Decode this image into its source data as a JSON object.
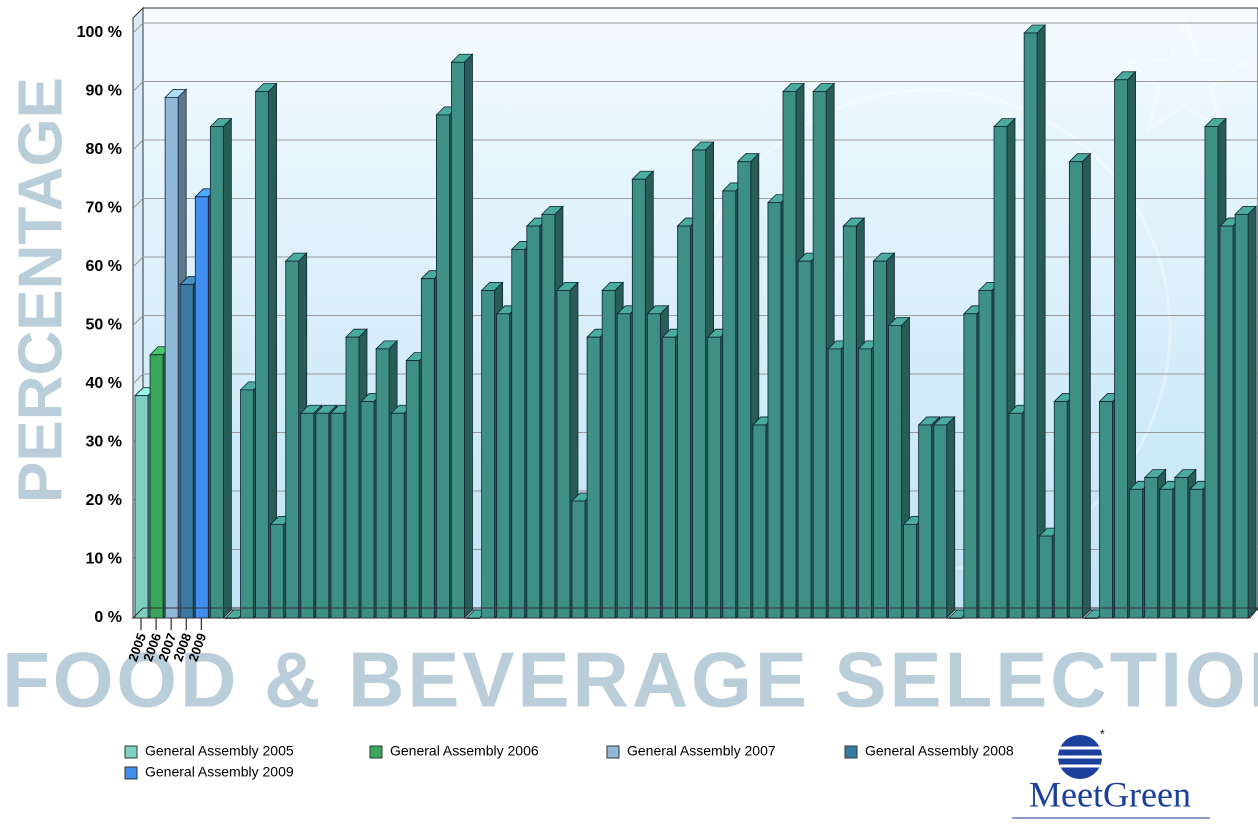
{
  "chart_data": {
    "type": "bar3d",
    "y_axis_title": "PERCENTAGE",
    "x_axis_title": "FOOD & BEVERAGE SELECTION",
    "categories": [
      "2005",
      "2006",
      "2007",
      "2008",
      "2009",
      null,
      null,
      null,
      null,
      null,
      null,
      null,
      null,
      null,
      null,
      null,
      null,
      null,
      null,
      null,
      null,
      null,
      null,
      null,
      null,
      null,
      null,
      null,
      null,
      null,
      null,
      null,
      null,
      null,
      null,
      null,
      null,
      null,
      null,
      null,
      null,
      null,
      null,
      null,
      null,
      null,
      null,
      null,
      null,
      null,
      null,
      null,
      null,
      null,
      null,
      null,
      null,
      null,
      null,
      null,
      null,
      null,
      null,
      null,
      null,
      null,
      null,
      null,
      null,
      null,
      null,
      null,
      null,
      null
    ],
    "values": [
      38,
      45,
      89,
      57,
      72,
      84,
      0,
      39,
      90,
      16,
      61,
      35,
      35,
      35,
      48,
      37,
      46,
      35,
      44,
      58,
      86,
      95,
      0,
      56,
      52,
      63,
      67,
      69,
      56,
      20,
      48,
      56,
      52,
      75,
      52,
      48,
      67,
      80,
      48,
      73,
      78,
      33,
      71,
      90,
      61,
      90,
      46,
      67,
      46,
      61,
      50,
      16,
      33,
      33,
      0,
      52,
      56,
      84,
      35,
      100,
      14,
      37,
      78,
      0,
      37,
      92,
      22,
      24,
      22,
      24,
      22,
      84,
      67,
      69
    ],
    "series": [
      {
        "name": "General Assembly 2005",
        "color": "#7fd0c0"
      },
      {
        "name": "General Assembly 2006",
        "color": "#3aa65a"
      },
      {
        "name": "General Assembly 2007",
        "color": "#8fb8d8"
      },
      {
        "name": "General Assembly 2008",
        "color": "#3b7aa0"
      },
      {
        "name": "General Assembly 2009",
        "color": "#3f8ef0"
      }
    ],
    "bar_color": "#3e8f84",
    "ylim": [
      0,
      100
    ],
    "yticks": [
      {
        "value": 0,
        "label": "0 %"
      },
      {
        "value": 10,
        "label": "10 %"
      },
      {
        "value": 20,
        "label": "20 %"
      },
      {
        "value": 30,
        "label": "30 %"
      },
      {
        "value": 40,
        "label": "40 %"
      },
      {
        "value": 50,
        "label": "50 %"
      },
      {
        "value": 60,
        "label": "60 %"
      },
      {
        "value": 70,
        "label": "70 %"
      },
      {
        "value": 80,
        "label": "80 %"
      },
      {
        "value": 90,
        "label": "90 %"
      },
      {
        "value": 100,
        "label": "100 %"
      }
    ],
    "grid": true,
    "logo": "MeetGreen"
  }
}
